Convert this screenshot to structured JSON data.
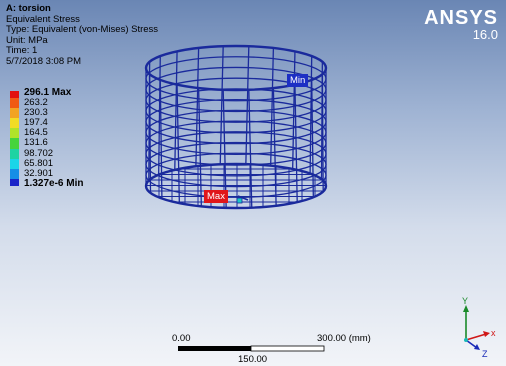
{
  "info": {
    "title": "A: torsion",
    "result": "Equivalent Stress",
    "type": "Type: Equivalent (von-Mises) Stress",
    "unit": "Unit: MPa",
    "time": "Time: 1",
    "date": "5/7/2018 3:08 PM"
  },
  "legend": {
    "items": [
      {
        "label": "296.1 Max",
        "color": "#e3100e"
      },
      {
        "label": "263.2",
        "color": "#f05a13"
      },
      {
        "label": "230.3",
        "color": "#f2a322"
      },
      {
        "label": "197.4",
        "color": "#f2dc25"
      },
      {
        "label": "164.5",
        "color": "#b0e32a"
      },
      {
        "label": "131.6",
        "color": "#46d43c"
      },
      {
        "label": "98.702",
        "color": "#1fd3a2"
      },
      {
        "label": "65.801",
        "color": "#1ad5e8"
      },
      {
        "label": "32.901",
        "color": "#168ee6"
      },
      {
        "label": "1.327e-6 Min",
        "color": "#1a24c8"
      }
    ]
  },
  "brand": {
    "name": "ANSYS",
    "version": "16.0"
  },
  "probes": {
    "min_label": "Min",
    "max_label": "Max"
  },
  "scale_bar": {
    "left_label": "0.00",
    "right_label": "300.00 (mm)",
    "mid_label": "150.00"
  },
  "triad": {
    "x": "x",
    "y": "Y",
    "z": "Z"
  },
  "colors": {
    "mesh": "#1a2a9c",
    "background_top": "#6a86b4",
    "background_bottom": "#f2f4f8"
  }
}
